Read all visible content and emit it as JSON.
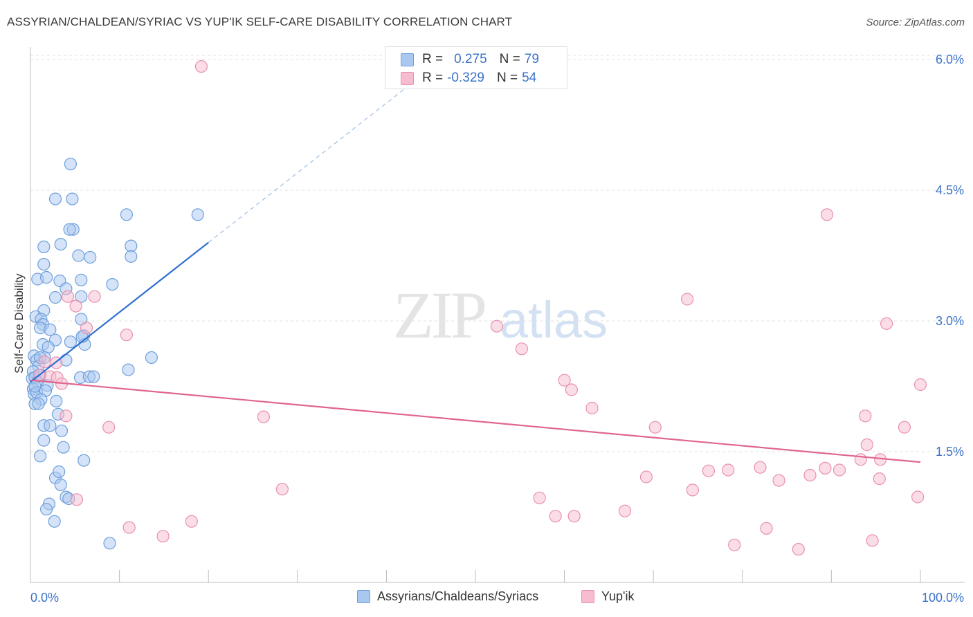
{
  "header": {
    "title": "ASSYRIAN/CHALDEAN/SYRIAC VS YUP'IK SELF-CARE DISABILITY CORRELATION CHART",
    "source": "Source: ZipAtlas.com"
  },
  "watermark": {
    "zip": "ZIP",
    "atlas": "atlas"
  },
  "legend": {
    "rows": [
      {
        "r_label": "R =",
        "r_value": "0.275",
        "n_label": "N =",
        "n_value": "79",
        "color": "#a9c8f0",
        "border": "#6d9fdc"
      },
      {
        "r_label": "R =",
        "r_value": "-0.329",
        "n_label": "N =",
        "n_value": "54",
        "color": "#f7bcd0",
        "border": "#e890ae"
      }
    ]
  },
  "bottom_legend": [
    {
      "label": "Assyrians/Chaldeans/Syriacs",
      "color": "#a9c8f0",
      "border": "#6d9fdc"
    },
    {
      "label": "Yup'ik",
      "color": "#f7bcd0",
      "border": "#e890ae"
    }
  ],
  "chart_data": {
    "type": "scatter",
    "title": "ASSYRIAN/CHALDEAN/SYRIAC VS YUP'IK SELF-CARE DISABILITY CORRELATION CHART",
    "xlabel": "",
    "ylabel": "Self-Care Disability",
    "x_ticks": [
      "0.0%",
      "100.0%"
    ],
    "y_ticks": [
      {
        "value": 1.5,
        "label": "1.5%"
      },
      {
        "value": 3.0,
        "label": "3.0%"
      },
      {
        "value": 4.5,
        "label": "4.5%"
      },
      {
        "value": 6.0,
        "label": "6.0%"
      }
    ],
    "xlim": [
      0,
      100
    ],
    "ylim": [
      0,
      6.2
    ],
    "grid": true,
    "legend_position": "top-center",
    "series": [
      {
        "name": "Assyrians/Chaldeans/Syriacs",
        "color": "#6d9fdc",
        "fill": "#a9c8f0",
        "trend": {
          "x0": 0,
          "y0": 2.3,
          "x1": 20,
          "y1": 3.9,
          "dash_to_x": 45,
          "dash_to_y": 5.9,
          "color": "#2e6fd0"
        },
        "points": [
          [
            4.5,
            4.8
          ],
          [
            2.8,
            4.4
          ],
          [
            4.7,
            4.4
          ],
          [
            4.8,
            4.05
          ],
          [
            4.4,
            4.05
          ],
          [
            1.5,
            3.85
          ],
          [
            3.4,
            3.88
          ],
          [
            5.4,
            3.75
          ],
          [
            6.7,
            3.73
          ],
          [
            1.5,
            3.65
          ],
          [
            0.8,
            3.48
          ],
          [
            1.8,
            3.5
          ],
          [
            3.3,
            3.46
          ],
          [
            5.7,
            3.47
          ],
          [
            4.0,
            3.37
          ],
          [
            2.8,
            3.27
          ],
          [
            5.7,
            3.28
          ],
          [
            1.5,
            3.12
          ],
          [
            0.6,
            3.05
          ],
          [
            1.2,
            3.02
          ],
          [
            1.4,
            2.96
          ],
          [
            5.7,
            3.02
          ],
          [
            1.1,
            2.92
          ],
          [
            2.2,
            2.9
          ],
          [
            2.8,
            2.78
          ],
          [
            6.0,
            2.83
          ],
          [
            4.5,
            2.76
          ],
          [
            6.1,
            2.73
          ],
          [
            5.8,
            2.82
          ],
          [
            1.4,
            2.73
          ],
          [
            2.0,
            2.7
          ],
          [
            0.4,
            2.6
          ],
          [
            1.6,
            2.58
          ],
          [
            4.0,
            2.55
          ],
          [
            0.7,
            2.55
          ],
          [
            0.9,
            2.48
          ],
          [
            0.3,
            2.42
          ],
          [
            0.2,
            2.34
          ],
          [
            0.5,
            2.35
          ],
          [
            1.1,
            2.38
          ],
          [
            0.8,
            2.3
          ],
          [
            5.6,
            2.35
          ],
          [
            6.6,
            2.36
          ],
          [
            7.1,
            2.36
          ],
          [
            1.9,
            2.26
          ],
          [
            0.3,
            2.22
          ],
          [
            0.4,
            2.16
          ],
          [
            0.7,
            2.18
          ],
          [
            1.7,
            2.2
          ],
          [
            1.2,
            2.1
          ],
          [
            0.5,
            2.05
          ],
          [
            0.9,
            2.05
          ],
          [
            2.9,
            2.08
          ],
          [
            3.1,
            1.93
          ],
          [
            1.5,
            1.8
          ],
          [
            2.2,
            1.8
          ],
          [
            3.5,
            1.74
          ],
          [
            1.5,
            1.63
          ],
          [
            3.7,
            1.55
          ],
          [
            1.1,
            1.45
          ],
          [
            6.0,
            1.4
          ],
          [
            2.8,
            1.2
          ],
          [
            3.2,
            1.27
          ],
          [
            3.4,
            1.12
          ],
          [
            4.0,
            0.98
          ],
          [
            4.3,
            0.96
          ],
          [
            2.1,
            0.9
          ],
          [
            1.8,
            0.84
          ],
          [
            2.7,
            0.7
          ],
          [
            8.9,
            0.45
          ],
          [
            10.8,
            4.22
          ],
          [
            13.6,
            2.58
          ],
          [
            11.3,
            3.86
          ],
          [
            11.3,
            3.74
          ],
          [
            9.2,
            3.42
          ],
          [
            11.0,
            2.44
          ],
          [
            18.8,
            4.22
          ],
          [
            1.1,
            2.58
          ],
          [
            0.5,
            2.25
          ]
        ]
      },
      {
        "name": "Yup'ik",
        "color": "#e890ae",
        "fill": "#f7bcd0",
        "trend": {
          "x0": 0,
          "y0": 2.32,
          "x1": 100,
          "y1": 1.38,
          "color": "#e0658e"
        },
        "points": [
          [
            19.2,
            5.92
          ],
          [
            4.2,
            3.28
          ],
          [
            5.1,
            3.17
          ],
          [
            7.2,
            3.28
          ],
          [
            6.3,
            2.92
          ],
          [
            10.8,
            2.84
          ],
          [
            2.9,
            2.52
          ],
          [
            1.6,
            2.53
          ],
          [
            1.0,
            2.38
          ],
          [
            2.2,
            2.36
          ],
          [
            3.0,
            2.35
          ],
          [
            3.5,
            2.28
          ],
          [
            4.0,
            1.91
          ],
          [
            8.8,
            1.78
          ],
          [
            26.2,
            1.9
          ],
          [
            28.3,
            1.07
          ],
          [
            11.1,
            0.63
          ],
          [
            14.9,
            0.53
          ],
          [
            18.1,
            0.7
          ],
          [
            5.2,
            0.95
          ],
          [
            52.4,
            2.94
          ],
          [
            55.2,
            2.68
          ],
          [
            60.0,
            2.32
          ],
          [
            60.8,
            2.21
          ],
          [
            63.1,
            2.0
          ],
          [
            70.2,
            1.78
          ],
          [
            73.8,
            3.25
          ],
          [
            76.2,
            1.28
          ],
          [
            78.4,
            1.29
          ],
          [
            82.0,
            1.32
          ],
          [
            84.1,
            1.17
          ],
          [
            87.6,
            1.23
          ],
          [
            89.3,
            1.31
          ],
          [
            89.5,
            4.22
          ],
          [
            90.9,
            1.29
          ],
          [
            93.8,
            1.91
          ],
          [
            96.2,
            2.97
          ],
          [
            98.2,
            1.78
          ],
          [
            100.0,
            2.27
          ],
          [
            93.3,
            1.41
          ],
          [
            94.0,
            1.58
          ],
          [
            95.5,
            1.41
          ],
          [
            95.4,
            1.19
          ],
          [
            99.7,
            0.98
          ],
          [
            57.2,
            0.97
          ],
          [
            59.0,
            0.76
          ],
          [
            61.1,
            0.76
          ],
          [
            66.8,
            0.82
          ],
          [
            69.2,
            1.21
          ],
          [
            74.4,
            1.06
          ],
          [
            79.1,
            0.43
          ],
          [
            82.7,
            0.62
          ],
          [
            86.3,
            0.38
          ],
          [
            94.6,
            0.48
          ]
        ]
      }
    ]
  }
}
